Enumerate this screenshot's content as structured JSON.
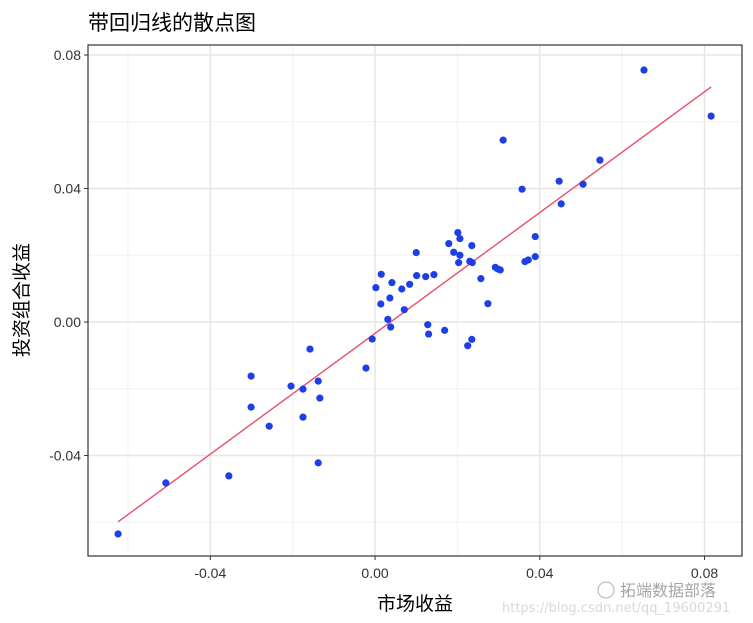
{
  "chart_data": {
    "type": "scatter",
    "title": "带回归线的散点图",
    "xlabel": "市场收益",
    "ylabel": "投资组合收益",
    "xlim": [
      -0.0697,
      0.0891
    ],
    "ylim": [
      -0.0701,
      0.083
    ],
    "xticks": [
      "-0.04",
      "0.00",
      "0.04",
      "0.08"
    ],
    "yticks": [
      "0.08",
      "0.04",
      "0.00",
      "-0.04"
    ],
    "grid": true,
    "point_color": "#1f3fe6",
    "line_color": "#e8506a",
    "regression": {
      "slope": 0.905,
      "intercept": -0.0034,
      "x_range": [
        -0.0624,
        0.0816
      ]
    },
    "points": [
      [
        -0.0624,
        -0.0635
      ],
      [
        -0.0508,
        -0.0482
      ],
      [
        -0.0355,
        -0.0461
      ],
      [
        -0.0301,
        -0.0162
      ],
      [
        -0.0301,
        -0.0255
      ],
      [
        -0.0257,
        -0.0312
      ],
      [
        -0.0204,
        -0.0192
      ],
      [
        -0.0175,
        -0.0201
      ],
      [
        -0.0175,
        -0.0285
      ],
      [
        -0.0158,
        -0.0081
      ],
      [
        -0.0138,
        -0.0177
      ],
      [
        -0.0134,
        -0.0228
      ],
      [
        -0.0138,
        -0.0422
      ],
      [
        -0.0022,
        -0.0138
      ],
      [
        -0.0007,
        -0.0051
      ],
      [
        0.0015,
        0.0143
      ],
      [
        0.0002,
        0.0103
      ],
      [
        0.0014,
        0.0054
      ],
      [
        0.0041,
        0.0118
      ],
      [
        0.0036,
        0.0072
      ],
      [
        0.0031,
        0.0008
      ],
      [
        0.0038,
        -0.0015
      ],
      [
        0.0065,
        0.0099
      ],
      [
        0.0071,
        0.0037
      ],
      [
        0.0084,
        0.0113
      ],
      [
        0.01,
        0.0208
      ],
      [
        0.0101,
        0.0139
      ],
      [
        0.0123,
        0.0136
      ],
      [
        0.0143,
        0.0142
      ],
      [
        0.0128,
        -0.0008
      ],
      [
        0.013,
        -0.0036
      ],
      [
        0.0169,
        -0.0025
      ],
      [
        0.0179,
        0.0235
      ],
      [
        0.0191,
        0.0209
      ],
      [
        0.0201,
        0.0268
      ],
      [
        0.0206,
        0.025
      ],
      [
        0.0206,
        0.02
      ],
      [
        0.0203,
        0.0178
      ],
      [
        0.0235,
        0.0229
      ],
      [
        0.023,
        0.0182
      ],
      [
        0.0236,
        0.0178
      ],
      [
        0.0257,
        0.013
      ],
      [
        0.0274,
        0.0055
      ],
      [
        0.0235,
        -0.0052
      ],
      [
        0.0225,
        -0.0071
      ],
      [
        0.0292,
        0.0164
      ],
      [
        0.0298,
        0.0159
      ],
      [
        0.0304,
        0.0156
      ],
      [
        0.0364,
        0.0181
      ],
      [
        0.0372,
        0.0186
      ],
      [
        0.0389,
        0.0196
      ],
      [
        0.0389,
        0.0256
      ],
      [
        0.0311,
        0.0545
      ],
      [
        0.0357,
        0.0398
      ],
      [
        0.0447,
        0.0422
      ],
      [
        0.0452,
        0.0354
      ],
      [
        0.0505,
        0.0413
      ],
      [
        0.0546,
        0.0485
      ],
      [
        0.0653,
        0.0755
      ],
      [
        0.0816,
        0.0617
      ]
    ]
  },
  "watermark": {
    "brand": "拓端数据部落",
    "url": "https://blog.csdn.net/qq_19600291"
  }
}
